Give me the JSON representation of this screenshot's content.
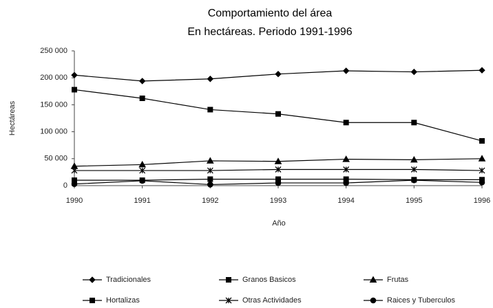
{
  "chart_data": {
    "type": "line",
    "title": "Comportamiento del área",
    "subtitle": "En hectáreas.  Periodo 1991-1996",
    "x_label": "Año",
    "y_label": "Hectáreas",
    "categories": [
      "1990",
      "1991",
      "1992",
      "1993",
      "1994",
      "1995",
      "1996"
    ],
    "ylim": [
      0,
      250000
    ],
    "yticks": [
      0,
      {
        "value": 50000,
        "label": "50 000"
      },
      {
        "value": 100000,
        "label": "100 000"
      },
      {
        "value": 150000,
        "label": "150 000"
      },
      {
        "value": 200000,
        "label": "200 000"
      },
      {
        "value": 250000,
        "label": "250 000"
      }
    ],
    "grid": false,
    "legend": "bottom",
    "series": [
      {
        "name": "Tradicionales",
        "color": "#000000",
        "marker": "diamond",
        "values": [
          205000,
          194000,
          198000,
          207000,
          213000,
          211000,
          214000
        ]
      },
      {
        "name": "Granos Basicos",
        "color": "#000000",
        "marker": "square",
        "values": [
          178000,
          162000,
          141000,
          133000,
          117000,
          117000,
          83000
        ]
      },
      {
        "name": "Frutas",
        "color": "#000000",
        "marker": "triangle",
        "values": [
          36000,
          39000,
          46000,
          45000,
          49000,
          48000,
          50000
        ]
      },
      {
        "name": "Hortalizas",
        "color": "#000000",
        "marker": "square",
        "values": [
          10000,
          10000,
          12000,
          12000,
          12000,
          11000,
          11000
        ]
      },
      {
        "name": "Otras Actividades",
        "color": "#000000",
        "marker": "cross",
        "values": [
          28000,
          28000,
          28000,
          30000,
          30000,
          30000,
          28000
        ]
      },
      {
        "name": "Raices y Tuberculos",
        "color": "#000000",
        "marker": "circle",
        "values": [
          3000,
          9000,
          2000,
          5000,
          5000,
          10000,
          6000
        ]
      }
    ]
  }
}
